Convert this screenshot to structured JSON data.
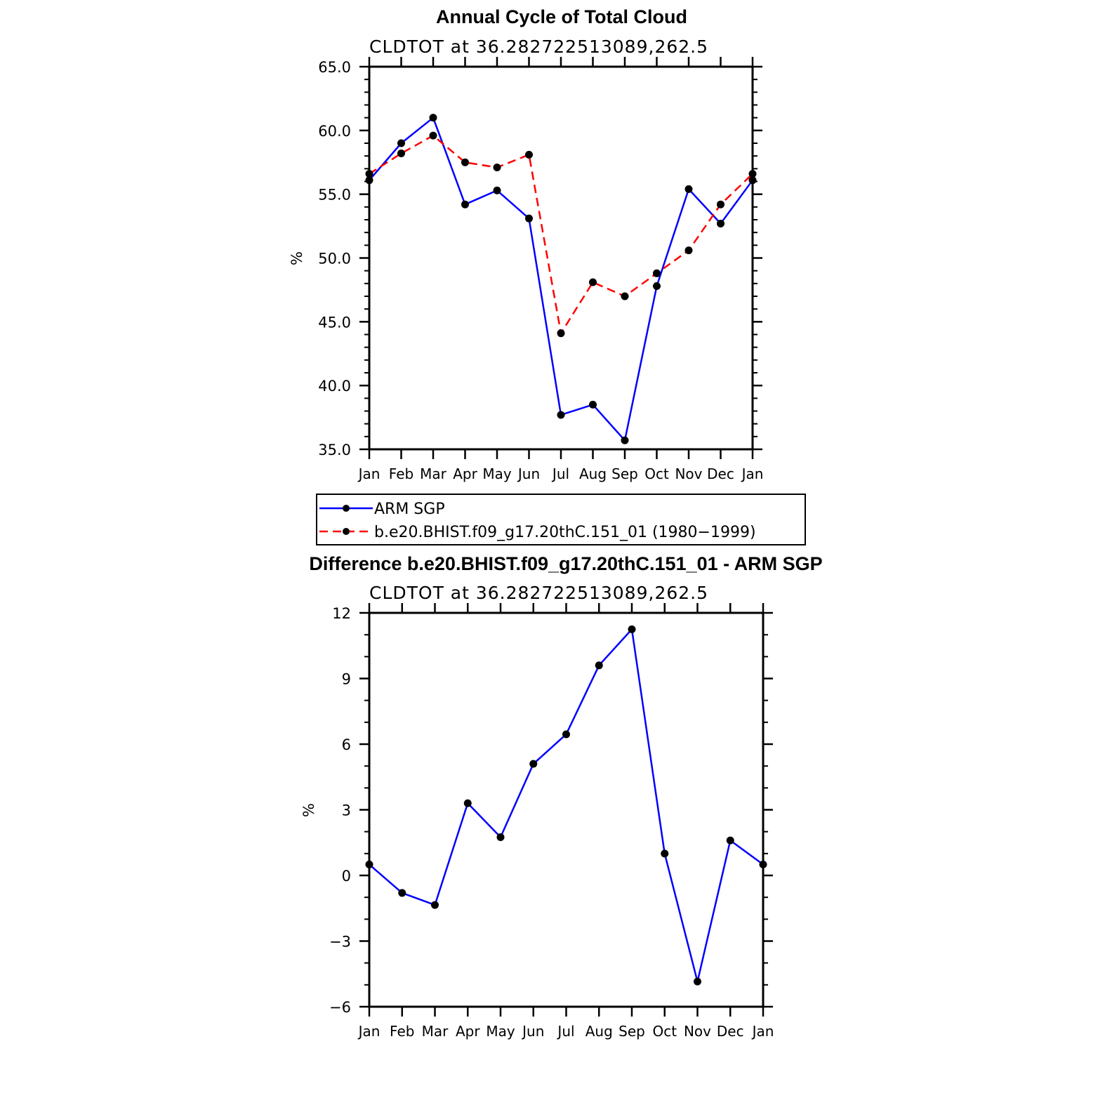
{
  "chart_data": [
    {
      "type": "line",
      "title": "Annual Cycle of Total Cloud",
      "subtitle": "CLDTOT at 36.282722513089,262.5",
      "ylabel": "%",
      "xlabel": "",
      "ylim": [
        35.0,
        65.0
      ],
      "yticks": [
        "35.0",
        "40.0",
        "45.0",
        "50.0",
        "55.0",
        "60.0",
        "65.0"
      ],
      "categories": [
        "Jan",
        "Feb",
        "Mar",
        "Apr",
        "May",
        "Jun",
        "Jul",
        "Aug",
        "Sep",
        "Oct",
        "Nov",
        "Dec",
        "Jan"
      ],
      "series": [
        {
          "name": "ARM SGP",
          "color": "#0000ff",
          "dash": "solid",
          "values": [
            56.1,
            59.0,
            61.0,
            54.2,
            55.3,
            53.1,
            37.7,
            38.5,
            35.7,
            47.8,
            55.4,
            52.7,
            56.1
          ]
        },
        {
          "name": "b.e20.BHIST.f09_g17.20thC.151_01 (1980−1999)",
          "color": "#ff0000",
          "dash": "dashed",
          "values": [
            56.6,
            58.2,
            59.6,
            57.5,
            57.1,
            58.1,
            44.1,
            48.1,
            47.0,
            48.8,
            50.6,
            54.2,
            56.6
          ]
        }
      ],
      "legend": {
        "position": "below",
        "items": [
          "ARM SGP",
          "b.e20.BHIST.f09_g17.20thC.151_01 (1980−1999)"
        ]
      }
    },
    {
      "type": "line",
      "title": "Difference b.e20.BHIST.f09_g17.20thC.151_01 - ARM SGP",
      "subtitle": "CLDTOT at 36.282722513089,262.5",
      "ylabel": "%",
      "xlabel": "",
      "ylim": [
        -6,
        12
      ],
      "yticks": [
        "−6",
        "−3",
        "0",
        "3",
        "6",
        "9",
        "12"
      ],
      "categories": [
        "Jan",
        "Feb",
        "Mar",
        "Apr",
        "May",
        "Jun",
        "Jul",
        "Aug",
        "Sep",
        "Oct",
        "Nov",
        "Dec",
        "Jan"
      ],
      "series": [
        {
          "name": "Difference",
          "color": "#0000ff",
          "dash": "solid",
          "values": [
            0.5,
            -0.8,
            -1.35,
            3.3,
            1.75,
            5.1,
            6.45,
            9.6,
            11.25,
            1.0,
            -4.85,
            1.6,
            0.5
          ]
        }
      ]
    }
  ]
}
